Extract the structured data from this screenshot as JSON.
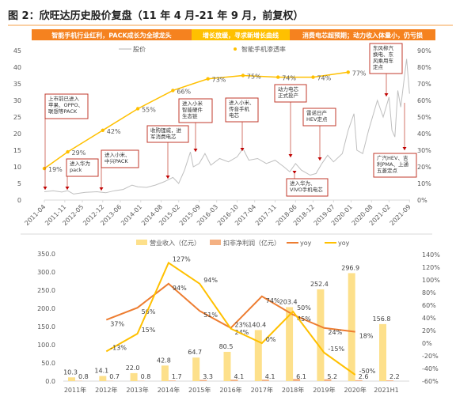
{
  "title": "图 2：欣旺达历史股价复盘（11 年 4 月-21 年 9 月，前复权）",
  "banner": [
    {
      "text": "智能手机行业红利，PACK成长为全球龙头",
      "color": "#f5821f"
    },
    {
      "text": "增长放缓，寻求新增长曲线",
      "color": "#ffc000"
    },
    {
      "text": "消费电芯超预期；动力收入体量小，仍亏损",
      "color": "#f5821f"
    }
  ],
  "chart_data": [
    {
      "type": "line",
      "legend": {
        "price": "股价",
        "penetration": "智能手机渗透率"
      },
      "yleft": {
        "range": [
          0,
          45
        ],
        "ticks": [
          "0",
          "5",
          "10",
          "15",
          "20",
          "25",
          "30",
          "35",
          "40",
          "45"
        ]
      },
      "yright": {
        "range": [
          0,
          90
        ],
        "ticks": [
          "0%",
          "10%",
          "20%",
          "30%",
          "40%",
          "50%",
          "60%",
          "70%",
          "80%",
          "90%"
        ]
      },
      "x_ticks": [
        "2011-04",
        "2011-11",
        "2012-05",
        "2012-12",
        "2013-06",
        "2014-01",
        "2014-08",
        "2015-02",
        "2015-09",
        "2016-03",
        "2016-10",
        "2017-04",
        "2017-11",
        "2018-06",
        "2018-12",
        "2019-07",
        "2020-01",
        "2020-08",
        "2021-02",
        "2021-09"
      ],
      "series": [
        {
          "name": "股价",
          "color": "#bfbfbf",
          "axis": "left",
          "points": [
            [
              "2011-04",
              2.5
            ],
            [
              "2011-07",
              2.8
            ],
            [
              "2011-10",
              2.4
            ],
            [
              "2011-12",
              2.8
            ],
            [
              "2012-02",
              1.8
            ],
            [
              "2012-06",
              2.3
            ],
            [
              "2012-10",
              2.5
            ],
            [
              "2013-01",
              2.2
            ],
            [
              "2013-04",
              2.8
            ],
            [
              "2013-07",
              3.2
            ],
            [
              "2013-10",
              4.5
            ],
            [
              "2013-12",
              4.0
            ],
            [
              "2014-03",
              3.8
            ],
            [
              "2014-06",
              4.5
            ],
            [
              "2014-09",
              5.5
            ],
            [
              "2014-12",
              6.8
            ],
            [
              "2015-02",
              5.0
            ],
            [
              "2015-04",
              9
            ],
            [
              "2015-06",
              14.5
            ],
            [
              "2015-07",
              10
            ],
            [
              "2015-09",
              11
            ],
            [
              "2015-11",
              14
            ],
            [
              "2016-01",
              10.5
            ],
            [
              "2016-04",
              12.5
            ],
            [
              "2016-07",
              11.5
            ],
            [
              "2016-10",
              13
            ],
            [
              "2016-12",
              15.5
            ],
            [
              "2017-02",
              12
            ],
            [
              "2017-05",
              12.5
            ],
            [
              "2017-08",
              11
            ],
            [
              "2017-11",
              12
            ],
            [
              "2018-02",
              10
            ],
            [
              "2018-04",
              8.5
            ],
            [
              "2018-06",
              11
            ],
            [
              "2018-08",
              9
            ],
            [
              "2018-11",
              7.5
            ],
            [
              "2019-01",
              8
            ],
            [
              "2019-03",
              11
            ],
            [
              "2019-05",
              13.5
            ],
            [
              "2019-07",
              11.5
            ],
            [
              "2019-10",
              14
            ],
            [
              "2019-12",
              21
            ],
            [
              "2020-02",
              26
            ],
            [
              "2020-03",
              15
            ],
            [
              "2020-05",
              14
            ],
            [
              "2020-07",
              21
            ],
            [
              "2020-10",
              30
            ],
            [
              "2020-12",
              25
            ],
            [
              "2021-02",
              31
            ],
            [
              "2021-03",
              21
            ],
            [
              "2021-04",
              19
            ],
            [
              "2021-05",
              33
            ],
            [
              "2021-06",
              28
            ],
            [
              "2021-08",
              42.5
            ],
            [
              "2021-09",
              32
            ]
          ]
        },
        {
          "name": "智能手机渗透率",
          "color": "#ffc000",
          "axis": "right",
          "points": [
            [
              "2011-04",
              19,
              "19%"
            ],
            [
              "2011-12",
              29,
              "29%"
            ],
            [
              "2012-12",
              42,
              "42%"
            ],
            [
              "2013-12",
              55,
              "55%"
            ],
            [
              "2014-12",
              66,
              "66%"
            ],
            [
              "2015-12",
              73,
              "73%"
            ],
            [
              "2016-12",
              75,
              "75%"
            ],
            [
              "2017-12",
              74,
              "74%"
            ],
            [
              "2018-12",
              74,
              "74%"
            ],
            [
              "2019-12",
              77,
              "77%"
            ]
          ]
        }
      ],
      "annotations": [
        {
          "lines": [
            "上市前已进入",
            "苹果、OPPO、",
            "联想等PACK"
          ]
        },
        {
          "lines": [
            "进入华为",
            "pack"
          ]
        },
        {
          "lines": [
            "进入小米、",
            "中兴PACK"
          ]
        },
        {
          "lines": [
            "收购锂威，进",
            "军消费电芯"
          ]
        },
        {
          "lines": [
            "进入小米",
            "智能硬件",
            "生态链"
          ]
        },
        {
          "lines": [
            "进入小米、",
            "传音手机",
            "电芯"
          ]
        },
        {
          "lines": [
            "动力电芯",
            "正式投产"
          ]
        },
        {
          "lines": [
            "进入华为、",
            "VIVO手机电芯"
          ]
        },
        {
          "lines": [
            "雷诺日产",
            "HEV定点"
          ]
        },
        {
          "lines": [
            "东风柳汽",
            "换电、东",
            "风乘用车",
            "定点"
          ]
        },
        {
          "lines": [
            "广汽HEV、吉",
            "利PMA、上通",
            "五菱定点"
          ]
        }
      ],
      "annotation_color": "#c0392b"
    },
    {
      "type": "bar+line",
      "categories": [
        "2011年",
        "2012年",
        "2013年",
        "2014年",
        "2015年",
        "2016年",
        "2017年",
        "2018年",
        "2019年",
        "2020年",
        "2021H1"
      ],
      "yleft": {
        "range": [
          0,
          350
        ],
        "ticks": [
          "0.0",
          "50.0",
          "100.0",
          "150.0",
          "200.0",
          "250.0",
          "300.0",
          "350.0"
        ]
      },
      "yright": {
        "range": [
          -60,
          140
        ],
        "ticks": [
          "-60%",
          "-40%",
          "-20%",
          "0%",
          "20%",
          "40%",
          "60%",
          "80%",
          "100%",
          "120%",
          "140%"
        ]
      },
      "series": [
        {
          "name": "营业收入（亿元）",
          "type": "bar",
          "color": "#fde08b",
          "values": [
            10.3,
            14.1,
            22.0,
            42.8,
            64.7,
            80.5,
            140.4,
            203.4,
            252.4,
            296.9,
            156.8
          ],
          "labels": [
            "10.3",
            "14.1",
            "22.0",
            "42.8",
            "64.7",
            "80.5",
            "140.4",
            "203.4",
            "252.4",
            "296.9",
            "156.8"
          ]
        },
        {
          "name": "扣非净利润（亿元）",
          "type": "bar",
          "color": "#f4b183",
          "values": [
            0.8,
            0.7,
            0.8,
            1.7,
            3.3,
            4.1,
            4.1,
            6.1,
            5.2,
            2.6,
            2.2
          ],
          "labels": [
            "0.8",
            "0.7",
            "0.8",
            "1.7",
            "3.3",
            "4.1",
            "4.1",
            "6.1",
            "5.2",
            "2.6",
            "2.2"
          ]
        },
        {
          "name": "yoy",
          "type": "line",
          "color": "#ed7d31",
          "values": [
            null,
            37,
            56,
            94,
            51,
            24,
            74,
            45,
            24,
            18,
            null
          ],
          "labels": [
            null,
            "37%",
            "56%",
            "94%",
            "51%",
            "24%",
            "74%",
            "45%",
            "24%",
            "18%",
            null
          ]
        },
        {
          "name": "yoy",
          "type": "line",
          "color": "#ffc000",
          "values": [
            null,
            -13,
            15,
            127,
            94,
            23,
            0,
            50,
            -15,
            -50,
            null
          ],
          "labels": [
            null,
            "-13%",
            "15%",
            "127%",
            "94%",
            "23%",
            "0%",
            "50%",
            "-15%",
            "-50%",
            null
          ]
        }
      ]
    }
  ]
}
